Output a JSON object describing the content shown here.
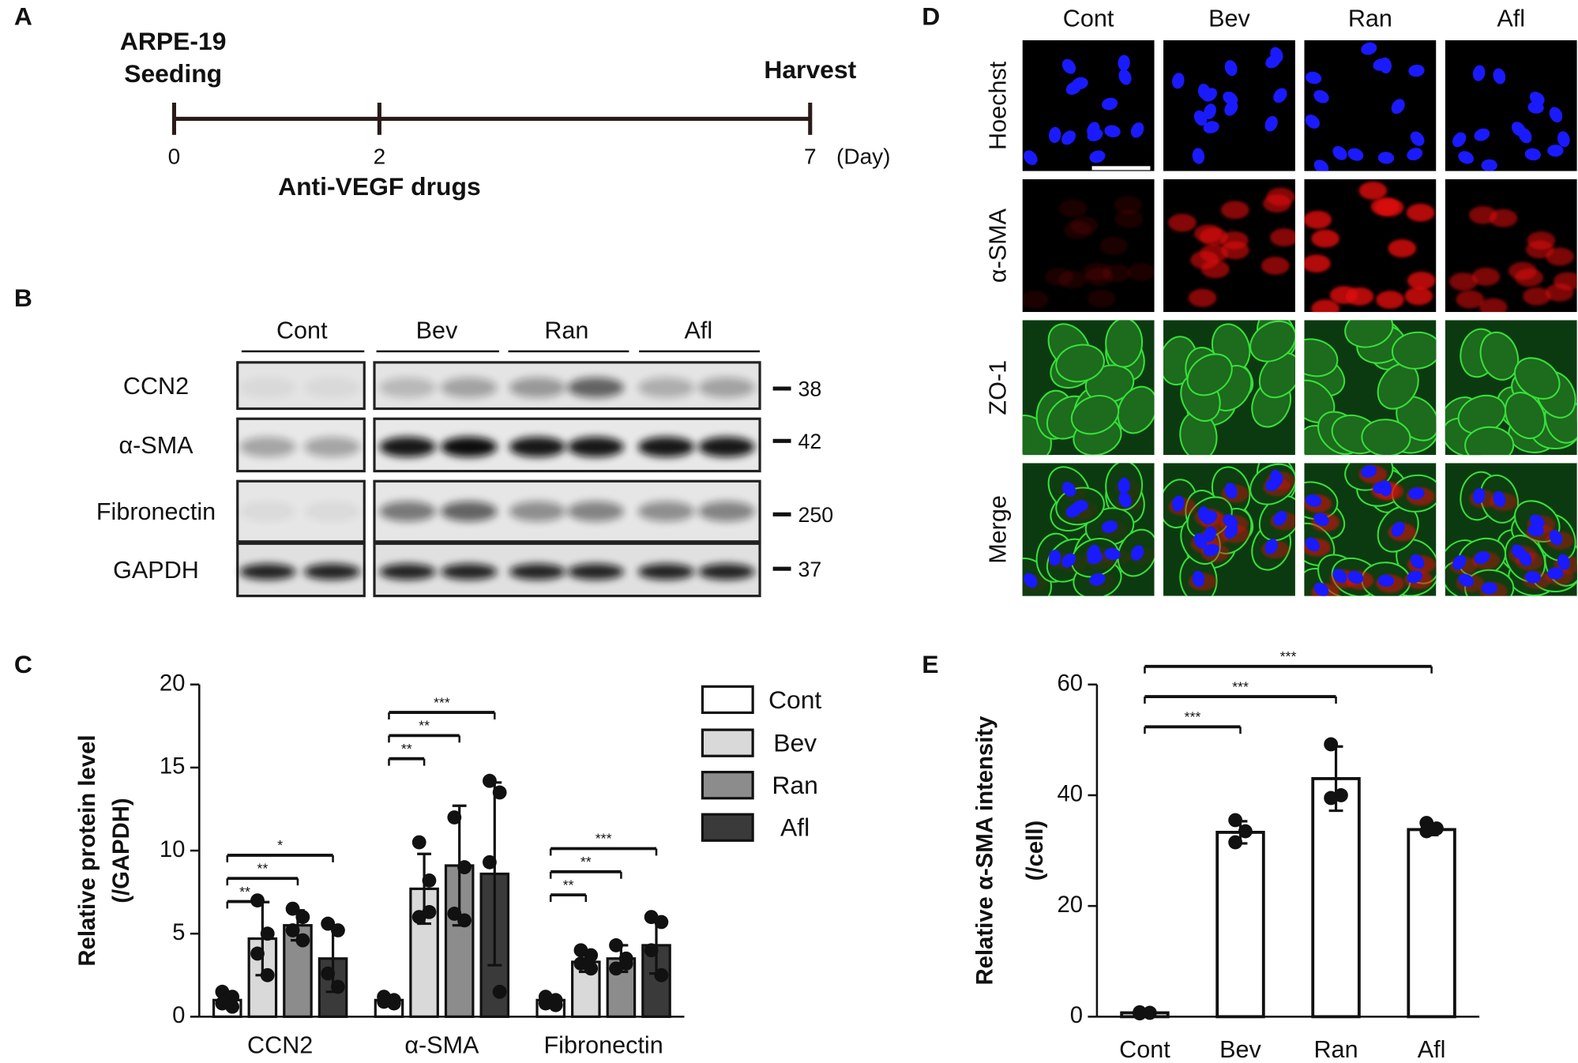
{
  "timeline": {
    "label": "A",
    "start": [
      "ARPE-19",
      "Seeding"
    ],
    "end": "Harvest",
    "ticks": [
      0,
      2,
      7
    ],
    "unit": "(Day)",
    "treatment": "Anti-VEGF drugs"
  },
  "western_blot": {
    "label": "B",
    "groups": [
      "Cont",
      "Bev",
      "Ran",
      "Afl"
    ],
    "rows": [
      "CCN2",
      "α-SMA",
      "Fibronectin",
      "GAPDH"
    ],
    "markers": [
      38,
      42,
      250,
      37
    ]
  },
  "immunofluorescence": {
    "label": "D",
    "columns": [
      "Cont",
      "Bev",
      "Ran",
      "Afl"
    ],
    "rows": [
      "Hoechst",
      "α-SMA",
      "ZO-1",
      "Merge"
    ]
  },
  "chart_data": [
    {
      "panel_label": "C",
      "type": "bar",
      "y_label": [
        "Relative protein level",
        "(/GAPDH)"
      ],
      "categories": [
        "CCN2",
        "α-SMA",
        "Fibronectin"
      ],
      "series": [
        {
          "name": "Cont",
          "color": "#ffffff",
          "values": [
            1,
            1,
            1
          ],
          "errors": [
            0.3,
            0.2,
            0.2
          ],
          "points": [
            [
              1.5,
              1.2,
              0.8,
              0.6
            ],
            [
              1.2,
              1,
              0.9,
              0.8
            ],
            [
              1.2,
              1,
              0.8,
              0.7
            ]
          ]
        },
        {
          "name": "Bev",
          "color": "#d9d9d9",
          "values": [
            4.7,
            7.7,
            3.3
          ],
          "errors": [
            2.2,
            2.1,
            0.6
          ],
          "points": [
            [
              7,
              5,
              3.8,
              2.5
            ],
            [
              10.5,
              8.2,
              6,
              6.3
            ],
            [
              4,
              3.7,
              3.2,
              2.9
            ]
          ]
        },
        {
          "name": "Ran",
          "color": "#8c8c8c",
          "values": [
            5.5,
            9.1,
            3.5
          ],
          "errors": [
            0.9,
            3.6,
            0.8
          ],
          "points": [
            [
              6.5,
              6,
              5.2,
              4.6
            ],
            [
              12,
              9,
              6.2,
              5.8
            ],
            [
              4.3,
              3.5,
              2.9,
              3.2
            ]
          ]
        },
        {
          "name": "Afl",
          "color": "#3a3a3a",
          "values": [
            3.5,
            8.6,
            4.3
          ],
          "errors": [
            2,
            5.5,
            1.7
          ],
          "points": [
            [
              5.6,
              5.2,
              2.6,
              1.8
            ],
            [
              14.2,
              13.5,
              9.3,
              1.5
            ],
            [
              6,
              5.7,
              4,
              2.5
            ]
          ]
        }
      ],
      "ylim": [
        0,
        20
      ],
      "yticks": [
        0,
        5,
        10,
        15,
        20
      ],
      "legend": "upper right",
      "significance": [
        [
          "**",
          "**",
          "*"
        ],
        [
          "**",
          "**",
          "***"
        ],
        [
          "**",
          "**",
          "***"
        ]
      ]
    },
    {
      "panel_label": "E",
      "type": "bar",
      "y_label": [
        "Relative α-SMA intensity",
        "(/cell)"
      ],
      "categories": [
        "Cont",
        "Bev",
        "Ran",
        "Afl"
      ],
      "values": [
        0.7,
        33.3,
        43,
        33.8
      ],
      "errors": [
        0.2,
        2,
        5.8,
        1
      ],
      "points": [
        [
          0.8,
          0.7,
          0.6
        ],
        [
          35.5,
          33.5,
          31.5
        ],
        [
          49.2,
          40,
          39.5
        ],
        [
          35,
          34,
          33.5
        ]
      ],
      "color": "#ffffff",
      "ylim": [
        0,
        60
      ],
      "yticks": [
        0,
        20,
        40,
        60
      ],
      "significance": [
        "***",
        "***",
        "***"
      ]
    }
  ]
}
